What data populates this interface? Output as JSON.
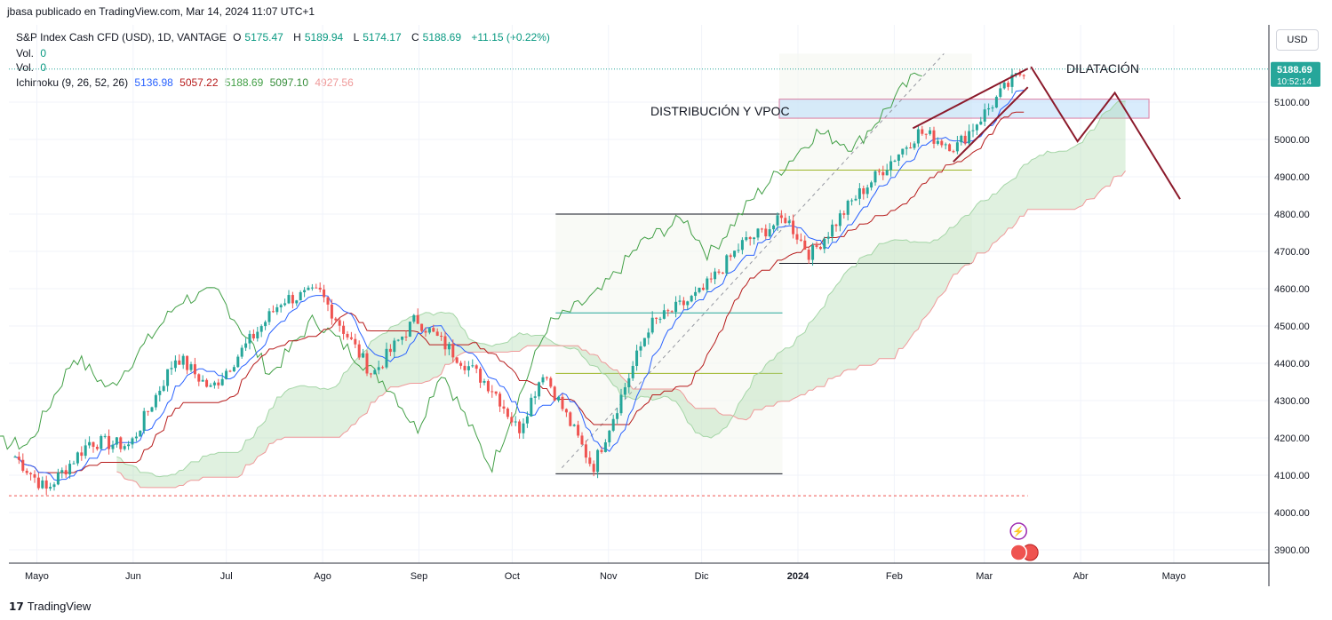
{
  "header": {
    "published": "jbasa publicado en TradingView.com, Mar 14, 2024 11:07 UTC+1"
  },
  "legend": {
    "symbol": "S&P Index Cash CFD (USD), 1D, VANTAGE",
    "o_label": "O",
    "o_value": "5175.47",
    "h_label": "H",
    "h_value": "5189.94",
    "l_label": "L",
    "l_value": "5174.17",
    "c_label": "C",
    "c_value": "5188.69",
    "change": "+11.15 (+0.22%)",
    "vol1_label": "Vol.",
    "vol1_value": "0",
    "vol2_label": "Vol.",
    "vol2_value": "0",
    "ichimoku_label": "Ichimoku (9, 26, 52, 26)",
    "ichimoku_values": [
      "5136.98",
      "5057.22",
      "5188.69",
      "5097.10",
      "4927.56"
    ],
    "ichimoku_colors": [
      "#2962ff",
      "#b71c1c",
      "#43a047",
      "#388e3c",
      "#ef9a9a"
    ]
  },
  "currency": "USD",
  "price_tag": {
    "price": "5188.69",
    "time": "10:52:14",
    "color": "#26a69a"
  },
  "footer": {
    "brand": "TradingView"
  },
  "annotations": {
    "dilatacion": "DILATACIÓN",
    "distribucion": "DISTRIBUCIÓN Y VPOC"
  },
  "chart_data": {
    "type": "candlestick",
    "y_axis": {
      "ylim": [
        3860,
        5230
      ],
      "ticks": [
        3900,
        4000,
        4100,
        4200,
        4300,
        4400,
        4500,
        4600,
        4700,
        4800,
        4900,
        5000,
        5100
      ]
    },
    "x_axis": {
      "tick_labels": [
        "Mayo",
        "Jun",
        "Jul",
        "Ago",
        "Sep",
        "Oct",
        "Nov",
        "Dic",
        "2024",
        "Feb",
        "Mar",
        "Abr",
        "Mayo"
      ]
    },
    "price_path": [
      [
        "2023-04-24",
        4150
      ],
      [
        "2023-05-04",
        4060
      ],
      [
        "2023-05-18",
        4190
      ],
      [
        "2023-05-31",
        4180
      ],
      [
        "2023-06-15",
        4420
      ],
      [
        "2023-06-26",
        4330
      ],
      [
        "2023-07-19",
        4570
      ],
      [
        "2023-07-31",
        4590
      ],
      [
        "2023-08-17",
        4370
      ],
      [
        "2023-08-31",
        4520
      ],
      [
        "2023-09-25",
        4330
      ],
      [
        "2023-10-03",
        4220
      ],
      [
        "2023-10-11",
        4380
      ],
      [
        "2023-10-27",
        4120
      ],
      [
        "2023-11-14",
        4500
      ],
      [
        "2023-12-01",
        4590
      ],
      [
        "2023-12-14",
        4720
      ],
      [
        "2023-12-28",
        4790
      ],
      [
        "2024-01-05",
        4690
      ],
      [
        "2024-01-19",
        4840
      ],
      [
        "2024-02-09",
        5020
      ],
      [
        "2024-02-21",
        4980
      ],
      [
        "2024-03-08",
        5140
      ],
      [
        "2024-03-14",
        5188.69
      ]
    ],
    "levels": [
      {
        "name": "range-top",
        "value": 4800
      },
      {
        "name": "range-bottom",
        "value": 4104
      },
      {
        "name": "range-mid-cyan",
        "value": 4535
      },
      {
        "name": "range-mid-olive",
        "value": 4373
      },
      {
        "name": "box-low",
        "value": 4668
      },
      {
        "name": "box-mid-olive",
        "value": 4918
      },
      {
        "name": "current-price",
        "value": 5188.69
      },
      {
        "name": "dashed-red",
        "value": 4045
      }
    ],
    "vpoc_zone": [
      5057,
      5108
    ],
    "projection_path": [
      5195,
      4995,
      5125,
      4840
    ]
  }
}
